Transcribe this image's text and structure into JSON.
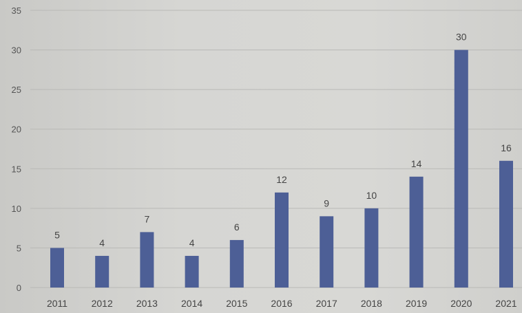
{
  "chart_data": {
    "type": "bar",
    "title": "",
    "xlabel": "",
    "ylabel": "",
    "categories": [
      "2011",
      "2012",
      "2013",
      "2014",
      "2015",
      "2016",
      "2017",
      "2018",
      "2019",
      "2020",
      "2021"
    ],
    "values": [
      5,
      4,
      7,
      4,
      6,
      12,
      9,
      10,
      14,
      30,
      16
    ],
    "ylim": [
      0,
      35
    ],
    "yticks": [
      0,
      5,
      10,
      15,
      20,
      25,
      30,
      35
    ],
    "grid": true,
    "legend": "none",
    "bar_color": "#4d5f96",
    "grid_color": "#b9b9b6"
  }
}
